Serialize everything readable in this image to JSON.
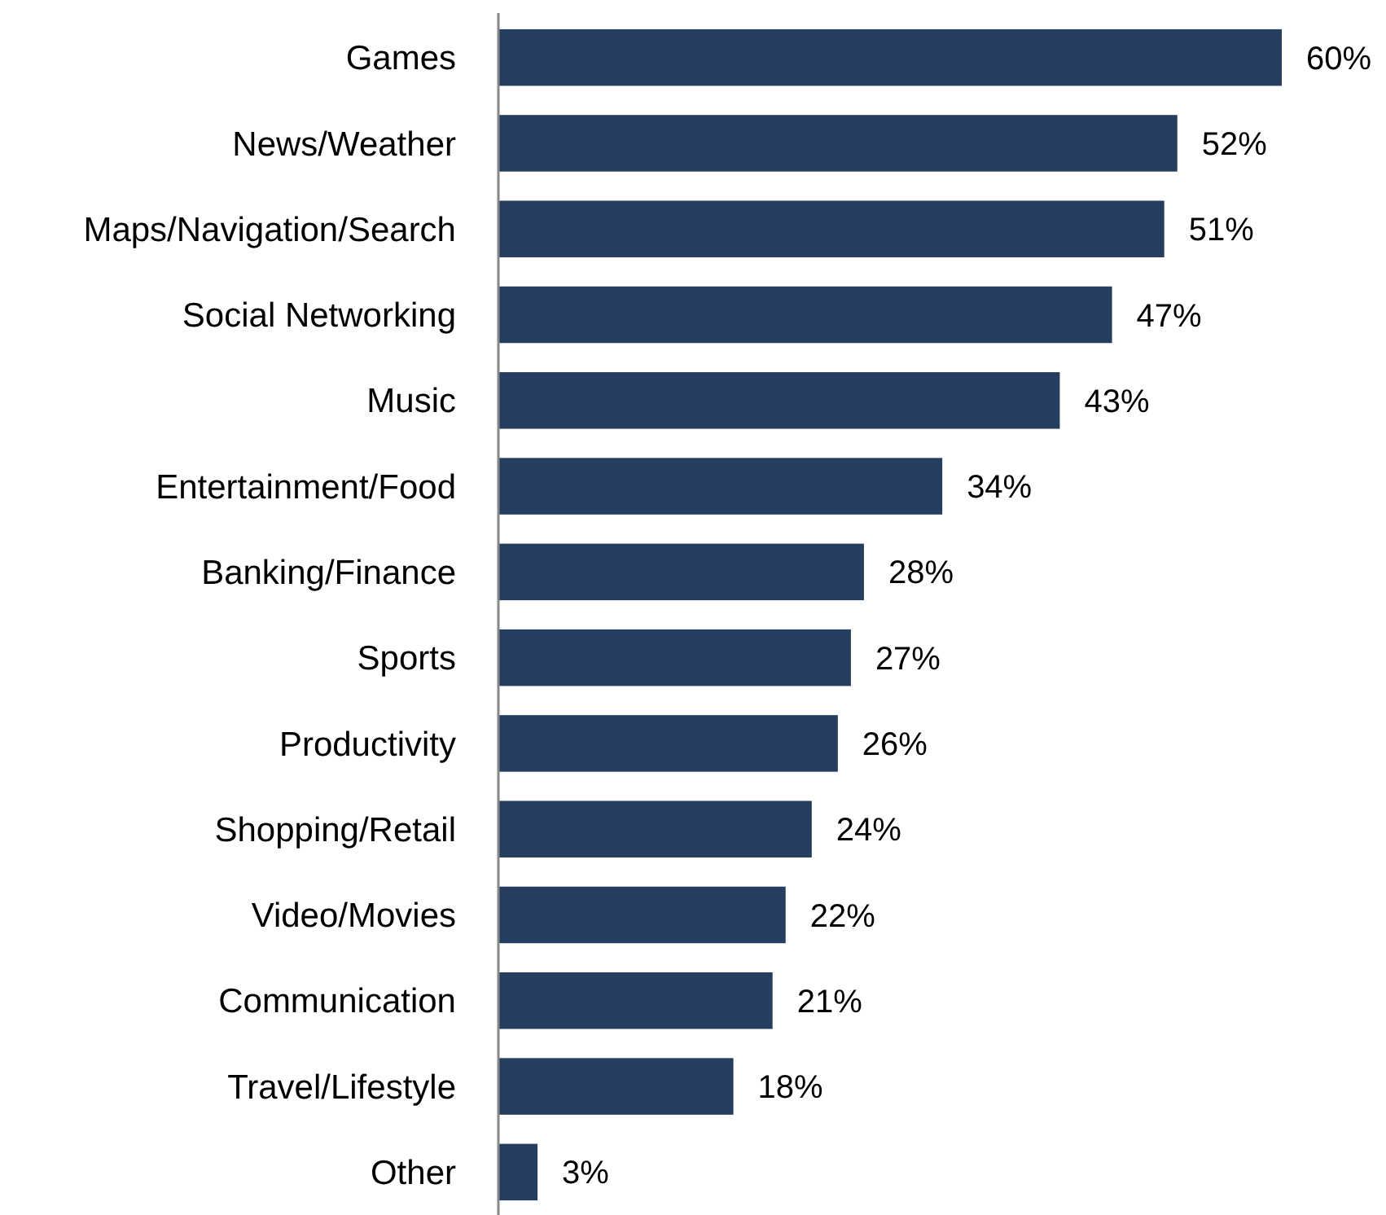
{
  "chart_data": {
    "type": "bar",
    "orientation": "horizontal",
    "categories": [
      "Games",
      "News/Weather",
      "Maps/Navigation/Search",
      "Social Networking",
      "Music",
      "Entertainment/Food",
      "Banking/Finance",
      "Sports",
      "Productivity",
      "Shopping/Retail",
      "Video/Movies",
      "Communication",
      "Travel/Lifestyle",
      "Other"
    ],
    "values": [
      60,
      52,
      51,
      47,
      43,
      34,
      28,
      27,
      26,
      24,
      22,
      21,
      18,
      3
    ],
    "value_labels": [
      "60%",
      "52%",
      "51%",
      "47%",
      "43%",
      "34%",
      "28%",
      "27%",
      "26%",
      "24%",
      "22%",
      "21%",
      "18%",
      "3%"
    ],
    "color": "#253d5e"
  }
}
